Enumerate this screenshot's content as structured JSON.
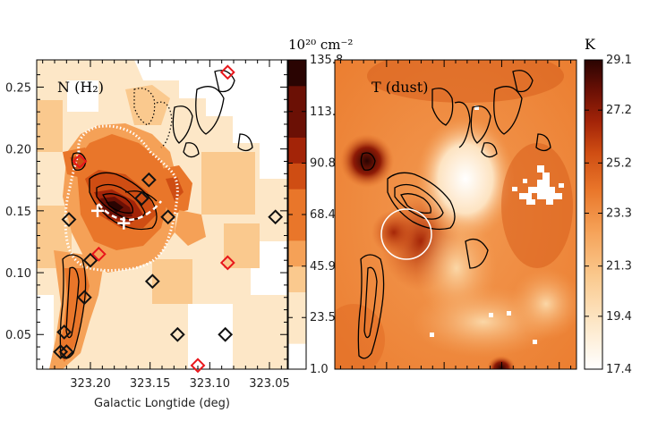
{
  "chart_data": [
    {
      "type": "heatmap",
      "panel_label": "N (H₂)",
      "xlabel": "Galactic Longtide (deg)",
      "ylabel": "",
      "x_ticks": [
        "323.20",
        "323.15",
        "323.10",
        "323.05"
      ],
      "x_tick_values": [
        323.2,
        323.15,
        323.1,
        323.05
      ],
      "xlim": [
        323.245,
        323.035
      ],
      "y_ticks": [
        "0.05",
        "0.10",
        "0.15",
        "0.20",
        "0.25"
      ],
      "y_tick_values": [
        0.05,
        0.1,
        0.15,
        0.2,
        0.25
      ],
      "ylim": [
        0.022,
        0.272
      ],
      "colorbar_unit": "10²⁰ cm⁻²",
      "colorbar_ticks": [
        "1.0",
        "23.5",
        "45.9",
        "68.4",
        "90.8",
        "113.3",
        "135.8"
      ],
      "colorbar_tick_values": [
        1.0,
        23.5,
        45.9,
        68.4,
        90.8,
        113.3,
        135.8
      ],
      "black_diamonds": [
        {
          "l": 323.218,
          "b": 0.143
        },
        {
          "l": 323.2,
          "b": 0.11
        },
        {
          "l": 323.205,
          "b": 0.08
        },
        {
          "l": 323.222,
          "b": 0.052
        },
        {
          "l": 323.225,
          "b": 0.036
        },
        {
          "l": 323.22,
          "b": 0.036
        },
        {
          "l": 323.151,
          "b": 0.175
        },
        {
          "l": 323.157,
          "b": 0.16
        },
        {
          "l": 323.135,
          "b": 0.145
        },
        {
          "l": 323.148,
          "b": 0.093
        },
        {
          "l": 323.127,
          "b": 0.05
        },
        {
          "l": 323.087,
          "b": 0.05
        },
        {
          "l": 323.045,
          "b": 0.145
        }
      ],
      "red_diamonds": [
        {
          "l": 323.085,
          "b": 0.262
        },
        {
          "l": 323.209,
          "b": 0.19
        },
        {
          "l": 323.193,
          "b": 0.115
        },
        {
          "l": 323.085,
          "b": 0.108
        },
        {
          "l": 323.11,
          "b": 0.025
        }
      ],
      "plus_markers": [
        {
          "l": 323.194,
          "b": 0.15
        },
        {
          "l": 323.172,
          "b": 0.14
        }
      ]
    },
    {
      "type": "heatmap",
      "panel_label": "T (dust)",
      "xlabel": "",
      "colorbar_unit": "K",
      "colorbar_ticks": [
        "17.4",
        "19.4",
        "21.3",
        "23.3",
        "25.2",
        "27.2",
        "29.1"
      ],
      "colorbar_tick_values": [
        17.4,
        19.4,
        21.3,
        23.3,
        25.2,
        27.2,
        29.1
      ]
    }
  ],
  "colors": {
    "colormap": [
      "#ffffff",
      "#fde7c7",
      "#fac98e",
      "#f5a157",
      "#e9762a",
      "#cf4d13",
      "#a32408",
      "#6b1005",
      "#2a0402"
    ],
    "red_marker": "#e8161b",
    "black_marker": "#111111"
  }
}
